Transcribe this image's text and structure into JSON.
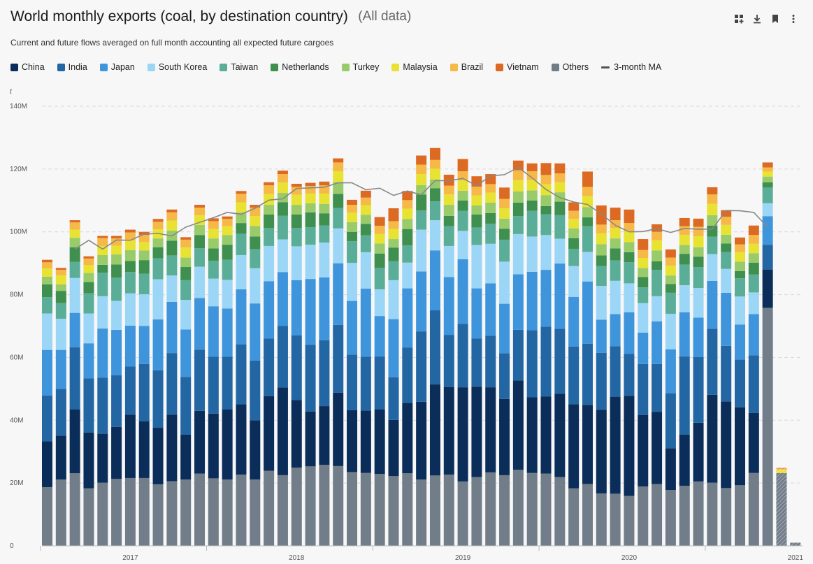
{
  "header": {
    "title": "World monthly exports (coal, by destination country)",
    "title_suffix": "(All data)",
    "subtitle": "Current and future flows averaged on full month accounting all expected future cargoes"
  },
  "toolbar": {
    "icons": [
      "dashboard-icon",
      "download-icon",
      "bookmark-icon",
      "more-vertical-icon"
    ]
  },
  "legend": {
    "items": [
      "China",
      "India",
      "Japan",
      "South Korea",
      "Taiwan",
      "Netherlands",
      "Turkey",
      "Malaysia",
      "Brazil",
      "Vietnam",
      "Others"
    ],
    "ma_label": "3-month MA"
  },
  "chart_data": {
    "type": "bar",
    "stacked": true,
    "unit": "t",
    "ylim": [
      0,
      140000000
    ],
    "y_ticks": [
      "0",
      "20M",
      "40M",
      "60M",
      "80M",
      "100M",
      "120M",
      "140M"
    ],
    "x_tick_labels": [
      "2017",
      "2018",
      "2019",
      "2020",
      "2021"
    ],
    "grid": true,
    "legend_position": "top-left",
    "colors": {
      "China": "#0b2d5a",
      "India": "#2266a3",
      "Japan": "#3f95dc",
      "South Korea": "#9cd6f7",
      "Taiwan": "#5aae98",
      "Netherlands": "#3f8f4f",
      "Turkey": "#9acb6a",
      "Malaysia": "#e8e332",
      "Brazil": "#f6b948",
      "Vietnam": "#dd6a23",
      "Others": "#717d89",
      "ma": "#888888"
    },
    "categories": [
      "2016-07",
      "2016-08",
      "2016-09",
      "2016-10",
      "2016-11",
      "2016-12",
      "2017-01",
      "2017-02",
      "2017-03",
      "2017-04",
      "2017-05",
      "2017-06",
      "2017-07",
      "2017-08",
      "2017-09",
      "2017-10",
      "2017-11",
      "2017-12",
      "2018-01",
      "2018-02",
      "2018-03",
      "2018-04",
      "2018-05",
      "2018-06",
      "2018-07",
      "2018-08",
      "2018-09",
      "2018-10",
      "2018-11",
      "2018-12",
      "2019-01",
      "2019-02",
      "2019-03",
      "2019-04",
      "2019-05",
      "2019-06",
      "2019-07",
      "2019-08",
      "2019-09",
      "2019-10",
      "2019-11",
      "2019-12",
      "2020-01",
      "2020-02",
      "2020-03",
      "2020-04",
      "2020-05",
      "2020-06",
      "2020-07",
      "2020-08",
      "2020-09",
      "2020-10",
      "2020-11",
      "2020-12",
      "2021-01",
      "2021-02"
    ],
    "forecast_from_index": 53,
    "series_values_in_millions": true,
    "series": [
      {
        "name": "Others",
        "values": [
          18.7,
          21.1,
          23.1,
          18.3,
          20.1,
          21.3,
          21.6,
          21.6,
          19.6,
          20.6,
          21.1,
          23.0,
          21.5,
          21.1,
          22.7,
          21.1,
          23.9,
          22.5,
          24.9,
          25.3,
          25.8,
          25.4,
          23.5,
          23.2,
          22.9,
          22.2,
          23.1,
          21.1,
          22.4,
          22.7,
          20.5,
          21.9,
          23.4,
          22.5,
          24.2,
          23.2,
          23.0,
          21.9,
          18.3,
          19.7,
          16.7,
          16.6,
          15.9,
          18.9,
          19.7,
          17.8,
          19.1,
          20.5,
          20.1,
          18.4,
          19.3,
          23.2,
          75.8,
          23.2,
          1.0,
          0
        ]
      },
      {
        "name": "China",
        "values": [
          14.6,
          14.0,
          20.3,
          17.8,
          15.6,
          16.6,
          20.2,
          18.1,
          18.0,
          21.2,
          14.3,
          20.0,
          20.6,
          22.3,
          22.4,
          18.9,
          23.8,
          27.9,
          21.5,
          17.5,
          18.7,
          23.4,
          19.7,
          19.9,
          20.5,
          17.9,
          22.4,
          24.8,
          29.0,
          27.9,
          30.0,
          28.8,
          27.1,
          24.3,
          28.5,
          24.1,
          24.6,
          26.5,
          26.8,
          25.2,
          26.6,
          30.9,
          31.9,
          22.8,
          23.0,
          13.3,
          16.3,
          18.7,
          28.0,
          27.6,
          24.8,
          19.1,
          12.2,
          0,
          0,
          0
        ]
      },
      {
        "name": "India",
        "values": [
          14.6,
          14.9,
          19.8,
          17.2,
          17.9,
          16.4,
          15.3,
          18.2,
          18.3,
          19.6,
          18.4,
          19.5,
          18.1,
          16.8,
          19.0,
          19.0,
          18.3,
          19.6,
          20.6,
          21.2,
          21.0,
          21.6,
          17.7,
          17.1,
          16.9,
          13.6,
          17.6,
          22.4,
          23.6,
          16.6,
          20.2,
          15.3,
          16.4,
          14.5,
          16.1,
          21.4,
          22.2,
          20.7,
          18.4,
          19.5,
          18.2,
          16.1,
          13.3,
          16.2,
          15.2,
          17.5,
          24.9,
          20.9,
          21.0,
          17.7,
          15.2,
          18.4,
          7.9,
          0,
          0,
          0
        ]
      },
      {
        "name": "Japan",
        "values": [
          14.5,
          12.4,
          11.0,
          11.2,
          15.6,
          14.5,
          13.0,
          12.1,
          16.2,
          16.3,
          15.1,
          16.4,
          16.1,
          15.4,
          17.6,
          18.2,
          18.3,
          17.2,
          17.6,
          21.0,
          20.0,
          19.6,
          17.1,
          21.7,
          12.9,
          18.5,
          18.9,
          19.1,
          19.1,
          18.4,
          20.6,
          16.0,
          16.7,
          15.8,
          17.7,
          18.6,
          18.1,
          20.8,
          15.8,
          19.8,
          10.5,
          10.2,
          13.3,
          10.0,
          13.6,
          14.0,
          14.1,
          12.6,
          15.3,
          16.9,
          11.2,
          13.1,
          9.1,
          0,
          0,
          0
        ]
      },
      {
        "name": "South Korea",
        "values": [
          11.6,
          9.9,
          11.1,
          9.5,
          10.3,
          9.2,
          10.3,
          10.1,
          12.8,
          8.4,
          9.4,
          10.0,
          8.8,
          9.1,
          10.9,
          11.2,
          11.2,
          10.4,
          10.8,
          10.9,
          11.1,
          11.1,
          12.1,
          11.6,
          8.5,
          12.4,
          8.2,
          13.3,
          9.6,
          9.9,
          9.0,
          13.8,
          12.6,
          13.4,
          12.8,
          11.2,
          11.1,
          7.9,
          9.8,
          9.4,
          10.8,
          10.6,
          9.2,
          9.4,
          8.0,
          11.3,
          8.6,
          9.4,
          8.5,
          7.6,
          8.9,
          6.9,
          4.1,
          0,
          0,
          0
        ]
      },
      {
        "name": "Taiwan",
        "values": [
          5.2,
          5.0,
          5.1,
          6.4,
          7.5,
          7.4,
          6.8,
          6.6,
          6.7,
          6.4,
          6.3,
          5.9,
          5.7,
          6.4,
          6.8,
          6.1,
          5.7,
          7.5,
          5.8,
          5.6,
          5.4,
          6.5,
          6.9,
          5.4,
          6.8,
          6.1,
          5.5,
          6.1,
          6.0,
          6.3,
          6.4,
          5.6,
          6.4,
          7.0,
          5.7,
          8.2,
          6.6,
          7.5,
          5.5,
          8.2,
          6.3,
          6.5,
          6.7,
          5.0,
          8.4,
          6.7,
          6.6,
          6.7,
          5.6,
          5.4,
          5.8,
          5.7,
          5.0,
          0,
          0,
          0
        ]
      },
      {
        "name": "Netherlands",
        "values": [
          4.1,
          3.9,
          4.7,
          3.6,
          2.5,
          4.2,
          3.5,
          4.3,
          3.5,
          4.7,
          4.2,
          4.2,
          3.9,
          4.8,
          3.4,
          4.0,
          4.3,
          4.3,
          4.3,
          4.7,
          3.9,
          4.5,
          3.0,
          3.6,
          4.6,
          4.3,
          5.2,
          5.1,
          4.2,
          3.3,
          3.3,
          4.1,
          3.4,
          3.5,
          4.3,
          3.3,
          2.6,
          4.3,
          3.4,
          2.8,
          3.4,
          3.8,
          3.2,
          3.3,
          2.7,
          2.8,
          3.4,
          3.3,
          3.5,
          2.7,
          2.3,
          3.8,
          1.7,
          0,
          0,
          0
        ]
      },
      {
        "name": "Turkey",
        "values": [
          2.4,
          2.1,
          3.0,
          2.9,
          3.1,
          3.2,
          3.5,
          3.1,
          2.8,
          3.2,
          3.0,
          3.2,
          3.2,
          3.1,
          3.4,
          3.4,
          3.1,
          3.0,
          3.1,
          2.9,
          3.0,
          3.8,
          3.1,
          2.9,
          3.2,
          2.7,
          3.2,
          3.0,
          2.8,
          3.5,
          3.1,
          2.9,
          3.3,
          3.2,
          3.6,
          3.2,
          3.5,
          3.0,
          3.1,
          3.3,
          3.6,
          3.2,
          3.2,
          2.9,
          3.5,
          2.7,
          2.8,
          3.0,
          3.3,
          2.8,
          3.0,
          3.0,
          1.8,
          0,
          0,
          0
        ]
      },
      {
        "name": "Malaysia",
        "values": [
          2.6,
          2.8,
          2.6,
          2.5,
          2.9,
          2.8,
          3.0,
          2.7,
          2.9,
          3.2,
          3.2,
          3.1,
          3.0,
          2.8,
          3.2,
          3.1,
          3.4,
          3.3,
          3.2,
          3.1,
          3.3,
          3.4,
          3.0,
          3.1,
          3.0,
          3.2,
          3.3,
          3.5,
          3.4,
          3.3,
          3.3,
          3.2,
          3.2,
          3.3,
          3.6,
          3.3,
          3.5,
          3.2,
          3.0,
          3.5,
          3.4,
          3.3,
          3.4,
          3.2,
          3.2,
          3.1,
          3.2,
          3.5,
          3.6,
          3.1,
          3.0,
          3.0,
          1.6,
          1.0,
          0,
          0
        ]
      },
      {
        "name": "Brazil",
        "values": [
          2.0,
          1.8,
          2.3,
          2.1,
          2.5,
          2.3,
          2.6,
          2.2,
          2.4,
          2.6,
          2.5,
          2.4,
          2.5,
          2.3,
          2.7,
          2.7,
          2.8,
          2.7,
          2.5,
          2.4,
          2.6,
          2.8,
          2.5,
          2.4,
          2.6,
          2.5,
          2.7,
          3.0,
          2.8,
          2.8,
          2.9,
          2.8,
          2.7,
          3.0,
          3.1,
          2.8,
          2.9,
          2.8,
          2.6,
          2.9,
          2.8,
          2.5,
          2.7,
          2.5,
          2.7,
          2.6,
          2.8,
          3.0,
          3.0,
          2.6,
          2.5,
          2.8,
          1.3,
          0.4,
          0,
          0
        ]
      },
      {
        "name": "Vietnam",
        "values": [
          0.8,
          0.6,
          0.7,
          0.7,
          0.7,
          0.8,
          0.9,
          1.0,
          0.9,
          0.9,
          0.8,
          0.9,
          0.9,
          0.8,
          0.9,
          0.9,
          1.0,
          1.1,
          1.0,
          1.0,
          1.2,
          1.3,
          1.6,
          2.2,
          2.8,
          4.1,
          2.9,
          2.9,
          3.8,
          3.5,
          3.9,
          3.3,
          3.2,
          3.6,
          3.1,
          2.5,
          3.8,
          3.2,
          2.7,
          4.9,
          6.1,
          4.0,
          4.3,
          3.5,
          2.4,
          2.6,
          2.6,
          2.6,
          2.3,
          2.1,
          2.2,
          3.0,
          1.6,
          0.2,
          0,
          0
        ]
      }
    ],
    "ma": {
      "name": "3-month MA",
      "values": [
        null,
        null,
        94.5,
        97.3,
        94.5,
        97.4,
        97.3,
        99.3,
        99.5,
        98.7,
        101.5,
        103.0,
        104.5,
        106.2,
        105.6,
        107.5,
        110.1,
        110.5,
        113.8,
        114.0,
        114.2,
        115.6,
        115.6,
        113.4,
        113.9,
        111.6,
        113.0,
        111.8,
        116.3,
        116.3,
        117.0,
        114.7,
        117.8,
        118.2,
        120.5,
        117.2,
        113.5,
        110.9,
        109.5,
        108.7,
        105.7,
        102.1,
        100.0,
        100.1,
        101.0,
        99.8,
        101.1,
        100.8,
        100.9,
        106.8,
        106.7,
        106.2,
        101.5,
        null,
        null,
        null
      ]
    }
  }
}
